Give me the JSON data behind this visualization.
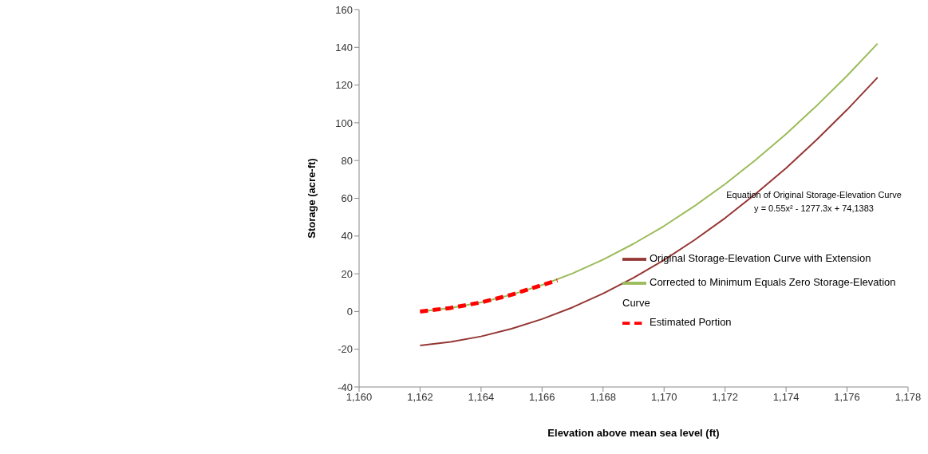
{
  "chart_data": {
    "type": "line",
    "xlabel": "Elevation above mean sea level (ft)",
    "ylabel": "Storage (acre-ft)",
    "annotations": [
      "Equation of Original Storage-Elevation Curve",
      "y = 0.55x² - 1277.3x + 74,1383"
    ],
    "xlim": [
      1160,
      1178
    ],
    "xticks": [
      {
        "value": 1160,
        "label": "1,160"
      },
      {
        "value": 1162,
        "label": "1,162"
      },
      {
        "value": 1164,
        "label": "1,164"
      },
      {
        "value": 1166,
        "label": "1,166"
      },
      {
        "value": 1168,
        "label": "1,168"
      },
      {
        "value": 1170,
        "label": "1,170"
      },
      {
        "value": 1172,
        "label": "1,172"
      },
      {
        "value": 1174,
        "label": "1,174"
      },
      {
        "value": 1176,
        "label": "1,176"
      },
      {
        "value": 1178,
        "label": "1,178"
      }
    ],
    "ylim": [
      -40,
      160
    ],
    "yticks": [
      -40,
      -20,
      0,
      20,
      40,
      60,
      80,
      100,
      120,
      140,
      160
    ],
    "grid": false,
    "legend": "right",
    "marker": "none",
    "series": [
      {
        "name": "Original Storage-Elevation Curve with Extension",
        "color": "#953735",
        "line_style": "solid",
        "x": [
          1162,
          1163,
          1164,
          1165,
          1166,
          1167,
          1168,
          1169,
          1170,
          1171,
          1172,
          1173,
          1174,
          1175,
          1176,
          1177
        ],
        "values": [
          -18,
          -16.1,
          -13.2,
          -9.1,
          -4,
          2.2,
          9.5,
          17.9,
          27.3,
          37.9,
          49.5,
          62.3,
          76,
          91,
          106.9,
          124
        ]
      },
      {
        "name": "Corrected to Minimum Equals Zero Storage-Elevation Curve",
        "color": "#9bbb59",
        "line_style": "solid",
        "x": [
          1162,
          1163,
          1164,
          1165,
          1166,
          1167,
          1168,
          1169,
          1170,
          1171,
          1172,
          1173,
          1174,
          1175,
          1176,
          1177
        ],
        "values": [
          0,
          1.9,
          4.8,
          8.9,
          14,
          20.2,
          27.5,
          35.9,
          45.3,
          55.9,
          67.5,
          80.3,
          94,
          109,
          124.9,
          142
        ]
      },
      {
        "name": "Estimated Portion",
        "color": "#ff0000",
        "line_style": "dashed",
        "x": [
          1162,
          1163,
          1164,
          1165,
          1166,
          1166.5
        ],
        "values": [
          0,
          1.9,
          4.8,
          8.9,
          14,
          16.5
        ]
      }
    ]
  }
}
